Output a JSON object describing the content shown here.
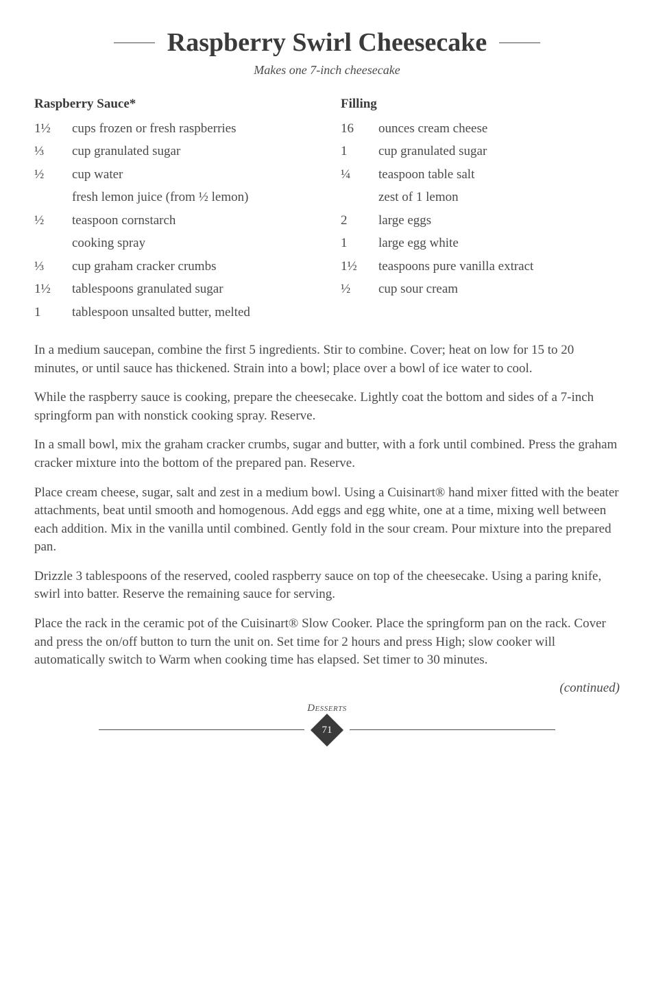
{
  "title": "Raspberry Swirl Cheesecake",
  "subtitle": "Makes one 7-inch cheesecake",
  "left": {
    "heading": "Raspberry Sauce*",
    "items": [
      {
        "qty": "1½",
        "desc": "cups frozen or fresh raspberries"
      },
      {
        "qty": "⅓",
        "desc": "cup granulated sugar"
      },
      {
        "qty": "½",
        "desc": "cup water"
      },
      {
        "qty": "",
        "desc": "fresh lemon juice (from ½ lemon)"
      },
      {
        "qty": "½",
        "desc": "teaspoon cornstarch"
      },
      {
        "qty": "",
        "desc": "cooking spray"
      },
      {
        "qty": "⅓",
        "desc": "cup graham cracker crumbs"
      },
      {
        "qty": "1½",
        "desc": "tablespoons granulated sugar"
      },
      {
        "qty": "1",
        "desc": "tablespoon unsalted butter, melted"
      }
    ]
  },
  "right": {
    "heading": "Filling",
    "items": [
      {
        "qty": "16",
        "desc": "ounces cream cheese"
      },
      {
        "qty": "1",
        "desc": "cup granulated sugar"
      },
      {
        "qty": "¼",
        "desc": "teaspoon table salt"
      },
      {
        "qty": "",
        "desc": "zest of 1 lemon"
      },
      {
        "qty": "2",
        "desc": "large eggs"
      },
      {
        "qty": "1",
        "desc": "large egg white"
      },
      {
        "qty": "1½",
        "desc": "teaspoons pure vanilla extract"
      },
      {
        "qty": "½",
        "desc": "cup sour cream"
      }
    ]
  },
  "paragraphs": [
    "In a medium saucepan, combine the first 5 ingredients. Stir to combine. Cover; heat on low for 15 to 20 minutes, or until sauce has thickened. Strain into a bowl; place over a bowl of ice water to cool.",
    "While the raspberry sauce is cooking, prepare the cheesecake. Lightly coat the bottom and sides of a 7-inch springform pan with nonstick cooking spray. Reserve.",
    "In a small bowl, mix the graham cracker crumbs, sugar and butter, with a fork until combined. Press the graham cracker mixture into the bottom of the prepared pan. Reserve.",
    "Place cream cheese, sugar, salt and zest in a medium bowl. Using a Cuisinart® hand mixer fitted with the beater attachments, beat until smooth and homogenous. Add eggs and egg white, one at a time, mixing well between each addition. Mix in the vanilla until combined. Gently fold in the sour cream. Pour mixture into the prepared pan.",
    "Drizzle 3 tablespoons of the reserved, cooled raspberry sauce on top of the cheesecake. Using a paring knife, swirl into batter. Reserve the remaining sauce for serving.",
    "Place the rack in the ceramic pot of the Cuisinart® Slow Cooker. Place the springform pan on the rack. Cover and press the on/off button to turn the unit on. Set time for 2 hours and press High; slow cooker will automatically switch to Warm when cooking time has elapsed. Set timer to 30 minutes."
  ],
  "continued": "(continued)",
  "section_label": "Desserts",
  "page_number": "71",
  "style": {
    "text_color": "#4a4a4a",
    "heading_color": "#3a3a3a",
    "background_color": "#ffffff",
    "diamond_color": "#3a3a3a",
    "title_fontsize": 38,
    "body_fontsize": 19,
    "heading_fontsize": 19
  }
}
